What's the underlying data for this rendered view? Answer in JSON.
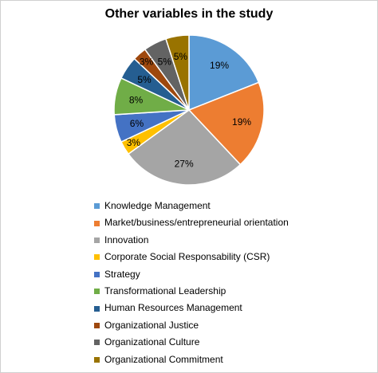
{
  "chart_data": {
    "type": "pie",
    "title": "Other variables in the study",
    "slices": [
      {
        "label": "Knowledge Management",
        "value": 19,
        "display": "19%",
        "color": "#5B9BD5"
      },
      {
        "label": "Market/business/entrepreneurial orientation",
        "value": 19,
        "display": "19%",
        "color": "#ED7D31"
      },
      {
        "label": "Innovation",
        "value": 27,
        "display": "27%",
        "color": "#A5A5A5"
      },
      {
        "label": "Corporate Social Responsability (CSR)",
        "value": 3,
        "display": "3%",
        "color": "#FFC000"
      },
      {
        "label": "Strategy",
        "value": 6,
        "display": "6%",
        "color": "#4472C4"
      },
      {
        "label": "Transformational Leadership",
        "value": 8,
        "display": "8%",
        "color": "#70AD47"
      },
      {
        "label": "Human Resources Management",
        "value": 5,
        "display": "5%",
        "color": "#255E91"
      },
      {
        "label": "Organizational Justice",
        "value": 3,
        "display": "3%",
        "color": "#9E480E"
      },
      {
        "label": "Organizational Culture",
        "value": 5,
        "display": "5%",
        "color": "#636363"
      },
      {
        "label": "Organizational Commitment",
        "value": 5,
        "display": "5%",
        "color": "#997300"
      }
    ],
    "legend_position": "bottom"
  }
}
